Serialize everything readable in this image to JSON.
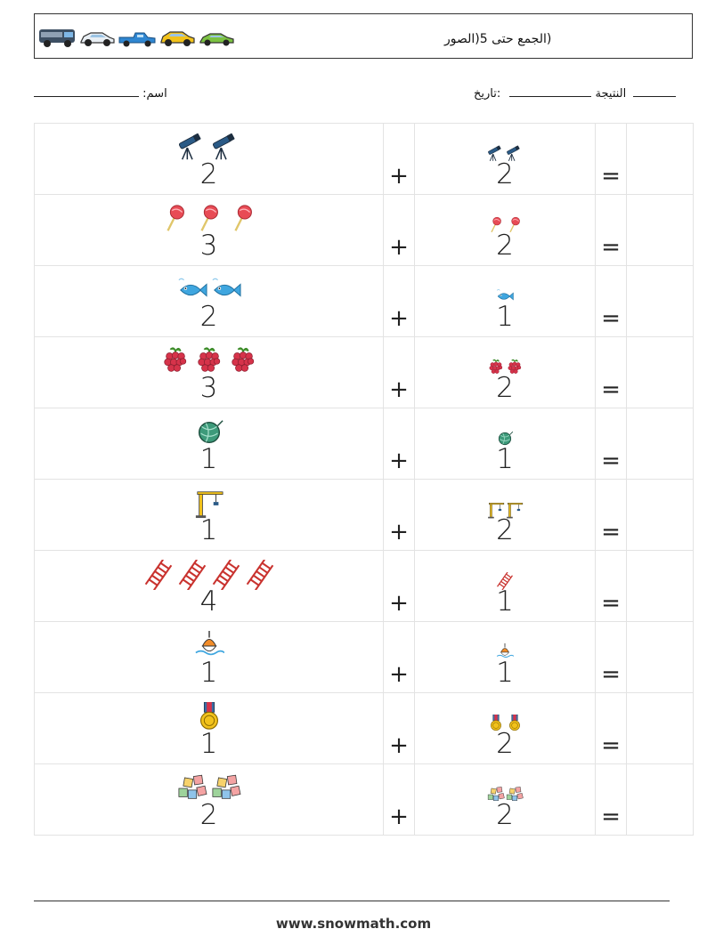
{
  "header": {
    "title": "(الجمع حتى 5(الصور",
    "car_icons": [
      "van-icon",
      "silver-car-icon",
      "pickup-truck-icon",
      "yellow-car-icon",
      "green-car-icon"
    ]
  },
  "info": {
    "name_label": ":اسم",
    "result_label": "النتيجة",
    "date_label": ":تاريخ"
  },
  "worksheet": {
    "plus": "+",
    "equals": "=",
    "rows": [
      {
        "a": "2",
        "b": "2",
        "icon": "telescope-icon"
      },
      {
        "a": "3",
        "b": "2",
        "icon": "lollipop-icon"
      },
      {
        "a": "2",
        "b": "1",
        "icon": "fish-icon"
      },
      {
        "a": "3",
        "b": "2",
        "icon": "raspberry-icon"
      },
      {
        "a": "1",
        "b": "1",
        "icon": "yarn-ball-icon"
      },
      {
        "a": "1",
        "b": "2",
        "icon": "crane-icon"
      },
      {
        "a": "4",
        "b": "1",
        "icon": "ladder-icon"
      },
      {
        "a": "1",
        "b": "1",
        "icon": "fishing-float-icon"
      },
      {
        "a": "1",
        "b": "2",
        "icon": "medal-icon"
      },
      {
        "a": "2",
        "b": "2",
        "icon": "toy-blocks-icon"
      }
    ]
  },
  "footer": {
    "url": "www.snowmath.com"
  }
}
